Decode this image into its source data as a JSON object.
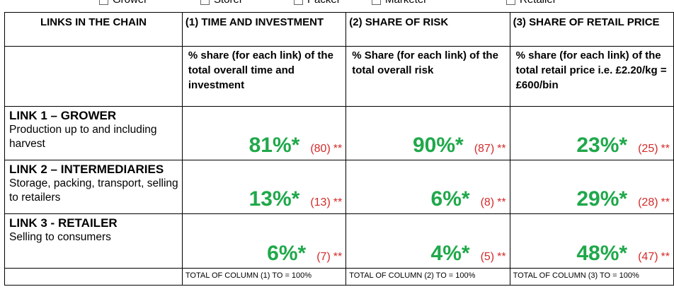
{
  "legend": [
    "Grower",
    "Storer",
    "Packer",
    "Marketer",
    "Retailer"
  ],
  "headers": {
    "links": "LINKS IN THE CHAIN",
    "col1": "(1) TIME AND INVESTMENT",
    "col2": "(2) SHARE OF RISK",
    "col3": "(3) SHARE OF RETAIL PRICE"
  },
  "descriptions": {
    "col1": "% share (for each link) of the total overall time and investment",
    "col2": "% Share (for each link) of the total overall risk",
    "col3": "% share (for each link) of the total retail price i.e. £2.20/kg = £600/bin"
  },
  "rows": [
    {
      "title": "LINK 1 – GROWER",
      "desc": "Production up to and including harvest",
      "c1": {
        "main": "81%*",
        "paren": "(80)",
        "stars": "**"
      },
      "c2": {
        "main": "90%*",
        "paren": "(87)",
        "stars": "**"
      },
      "c3": {
        "main": "23%*",
        "paren": "(25)",
        "stars": "**"
      }
    },
    {
      "title": "LINK 2 – INTERMEDIARIES",
      "desc": "Storage, packing, transport, selling to retailers",
      "c1": {
        "main": "13%*",
        "paren": "(13)",
        "stars": "**"
      },
      "c2": {
        "main": "6%*",
        "paren": "(8)",
        "stars": "**"
      },
      "c3": {
        "main": "29%*",
        "paren": "(28)",
        "stars": "**"
      }
    },
    {
      "title": "LINK 3 - RETAILER",
      "desc": "Selling to consumers",
      "c1": {
        "main": "6%*",
        "paren": "(7)",
        "stars": "**"
      },
      "c2": {
        "main": "4%*",
        "paren": "(5)",
        "stars": "**"
      },
      "c3": {
        "main": "48%*",
        "paren": "(47)",
        "stars": "**"
      }
    }
  ],
  "totals": {
    "col1": "TOTAL OF COLUMN (1) TO = 100%",
    "col2": "TOTAL OF COLUMN (2) TO = 100%",
    "col3": "TOTAL OF COLUMN (3) TO = 100%"
  },
  "colors": {
    "main_value": "#1fa84a",
    "paren_value": "#d42a2a"
  }
}
